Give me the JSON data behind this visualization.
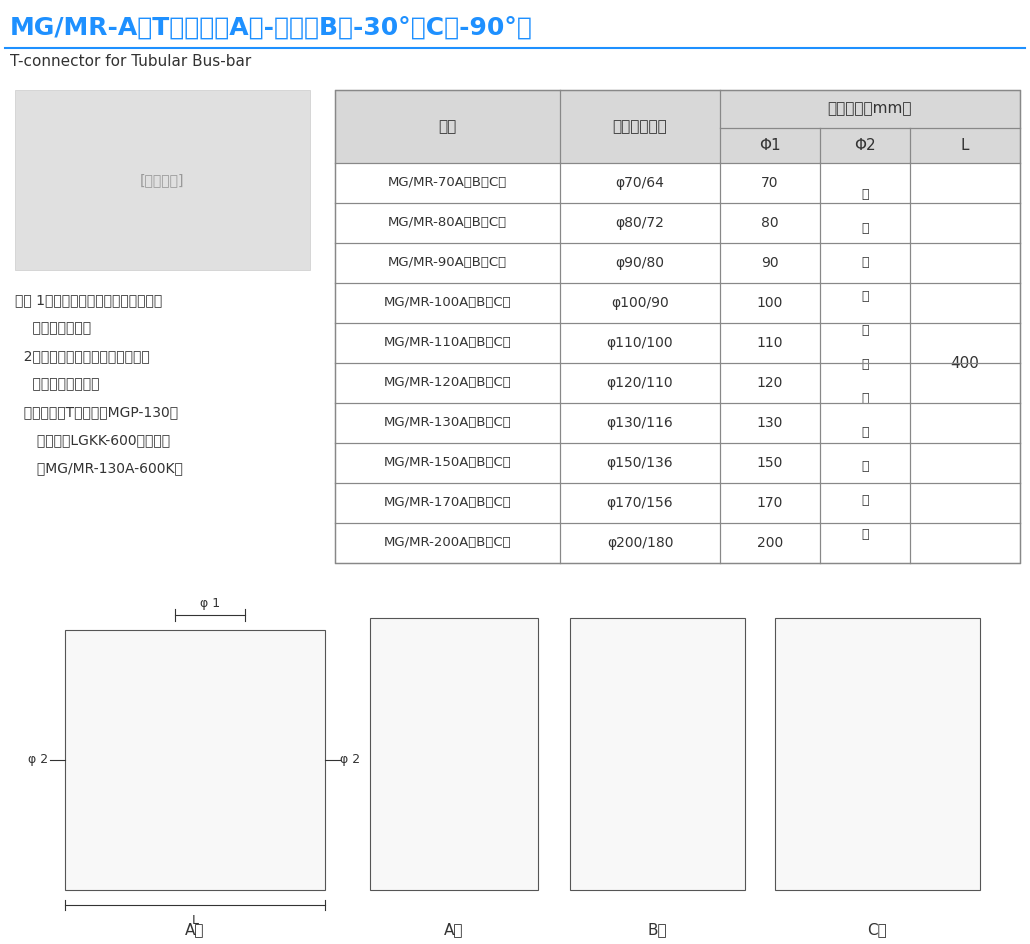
{
  "title": "MG/MR-A型T形线夹（A型-水平、B型-30°、C型-90°）",
  "subtitle": "T-connector for Tubular Bus-bar",
  "title_color": "#1E90FF",
  "line_color": "#1E90FF",
  "table_header_bg": "#D8D8D8",
  "table_row_bg_alt": "#F5F5F5",
  "table_row_bg": "#FFFFFF",
  "table_border_color": "#888888",
  "col_headers": [
    "型号",
    "适用母线规格",
    "主要尺寸（mm）"
  ],
  "sub_headers": [
    "Φ1",
    "Φ2",
    "L"
  ],
  "rows": [
    [
      "MG/MR-70A（B、C）",
      "φ70/64",
      "70"
    ],
    [
      "MG/MR-80A（B、C）",
      "φ80/72",
      "80"
    ],
    [
      "MG/MR-90A（B、C）",
      "φ90/80",
      "90"
    ],
    [
      "MG/MR-100A（B、C）",
      "φ100/90",
      "100"
    ],
    [
      "MG/MR-110A（B、C）",
      "φ110/100",
      "110"
    ],
    [
      "MG/MR-120A（B、C）",
      "φ120/110",
      "120"
    ],
    [
      "MG/MR-130A（B、C）",
      "φ130/116",
      "130"
    ],
    [
      "MG/MR-150A（B、C）",
      "φ150/136",
      "150"
    ],
    [
      "MG/MR-170A（B、C）",
      "φ170/156",
      "170"
    ],
    [
      "MG/MR-200A（B、C）",
      "φ200/180",
      "200"
    ]
  ],
  "phi2_text": "根据用户选定的导线制造",
  "L_text": "400",
  "notes_line1": "注： 1、主体和压盖为铝制件，其余为",
  "notes_line2": "    热镀锌锄制件；",
  "notes_line3": "  2、引下线根据用户需要，订货时",
  "notes_line4": "    请注明导线型号。",
  "notes_line5": "  例：管母线T接金具为MGP-130，",
  "notes_line6": "     引下线为LGKK-600，则型号",
  "notes_line7": "     为MG/MR-130A-600K。",
  "diagram_label_a": "A型",
  "diagram_label_b": "B型",
  "diagram_label_c": "C型",
  "phi1_label": "φ 1",
  "phi2_label": "φ 2",
  "L_label": "L",
  "bg_color": "#FFFFFF",
  "text_color": "#333333",
  "font_size_title": 18,
  "font_size_sub": 11,
  "font_size_table": 10,
  "font_size_notes": 10
}
